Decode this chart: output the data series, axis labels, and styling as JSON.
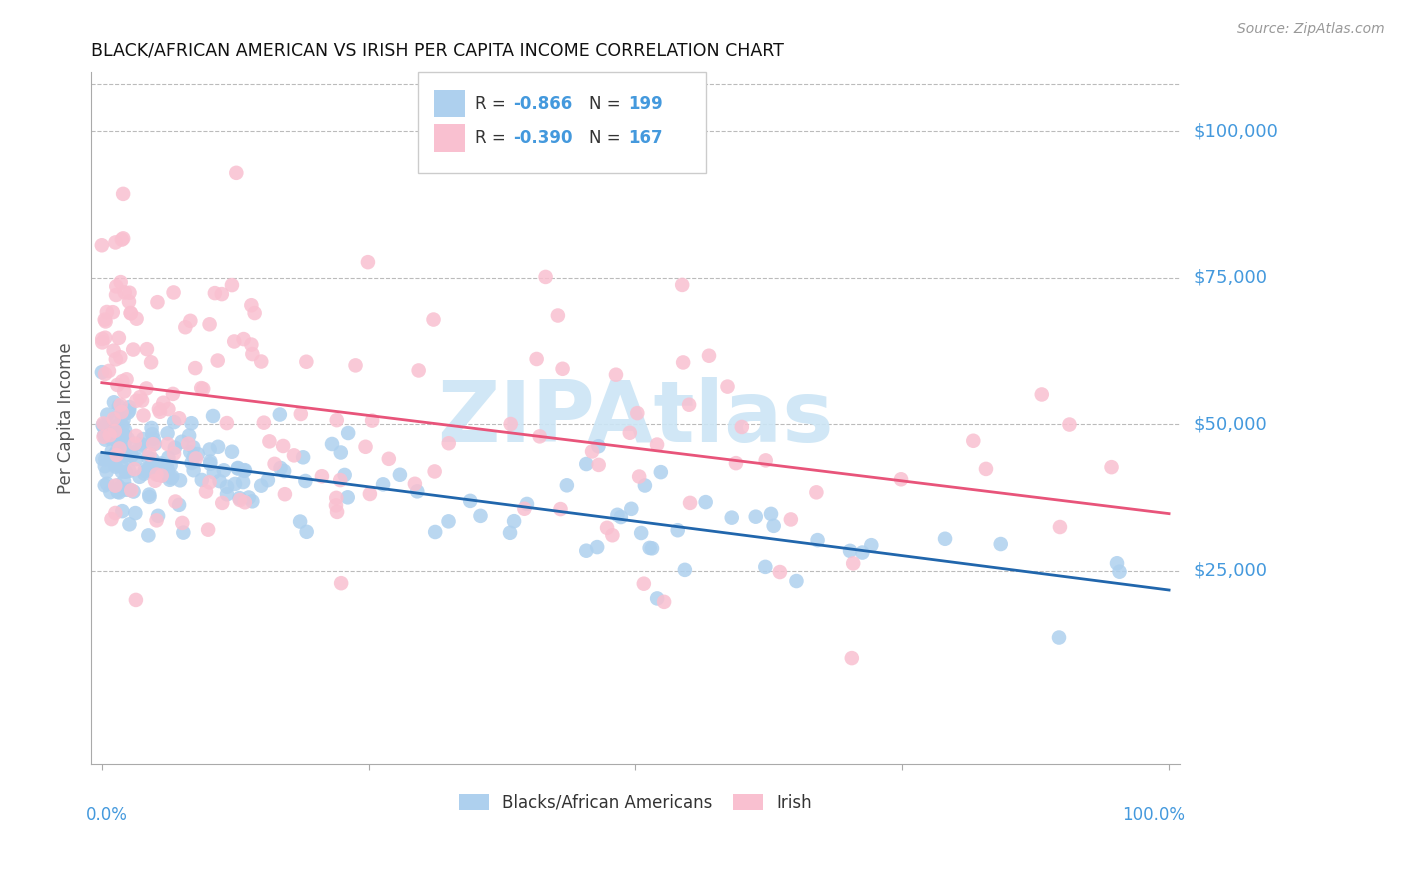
{
  "title": "BLACK/AFRICAN AMERICAN VS IRISH PER CAPITA INCOME CORRELATION CHART",
  "source": "Source: ZipAtlas.com",
  "ylabel": "Per Capita Income",
  "legend_label_1": "Blacks/African Americans",
  "legend_label_2": "Irish",
  "blue_color": "#aed0ee",
  "blue_line_color": "#2166ac",
  "pink_color": "#f9c0d0",
  "pink_line_color": "#e8547a",
  "blue_R": -0.866,
  "blue_N": 199,
  "pink_R": -0.39,
  "pink_N": 167,
  "axis_color": "#4499dd",
  "watermark_color": "#cce5f5",
  "bg_color": "#ffffff",
  "grid_color": "#bbbbbb",
  "ytick_vals": [
    0,
    25000,
    50000,
    75000,
    100000
  ],
  "ytick_labels": [
    "",
    "$25,000",
    "$50,000",
    "$75,000",
    "$100,000"
  ],
  "ymin": -8000,
  "ymax": 110000,
  "xmin": -0.01,
  "xmax": 1.01
}
